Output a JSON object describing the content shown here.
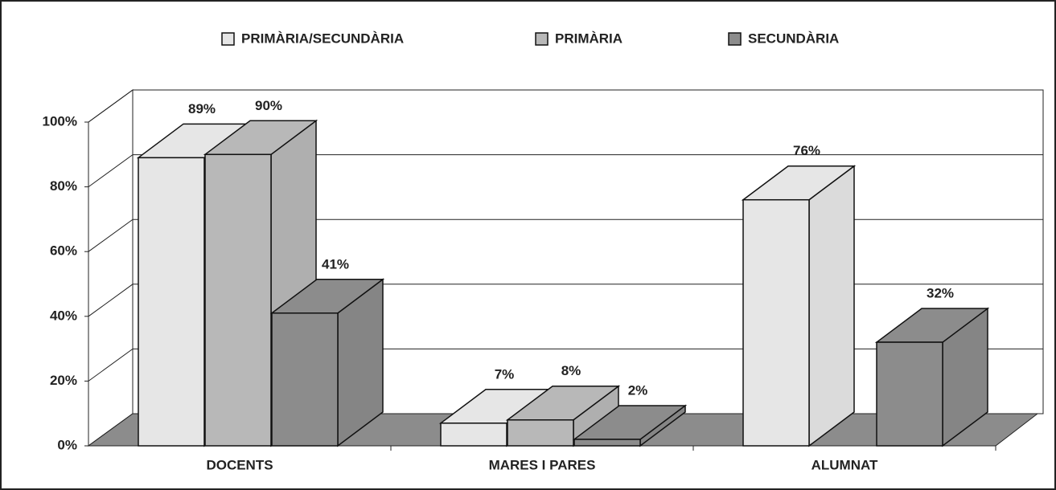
{
  "chart_data": {
    "type": "bar3d",
    "categories": [
      "DOCENTS",
      "MARES I PARES",
      "ALUMNAT"
    ],
    "series": [
      {
        "name": "PRIMÀRIA/SECUNDÀRIA",
        "color": "#e6e6e6",
        "values": [
          89,
          7,
          76
        ],
        "value_labels": [
          "89%",
          "7%",
          "76%"
        ]
      },
      {
        "name": "PRIMÀRIA",
        "color": "#b8b8b8",
        "values": [
          90,
          8,
          null
        ],
        "value_labels": [
          "90%",
          "8%",
          null
        ]
      },
      {
        "name": "SECUNDÀRIA",
        "color": "#8c8c8c",
        "values": [
          41,
          2,
          32
        ],
        "value_labels": [
          "41%",
          "2%",
          "32%"
        ]
      }
    ],
    "ylim": [
      0,
      100
    ],
    "yticks": [
      {
        "value": 0,
        "label": "0%"
      },
      {
        "value": 20,
        "label": "20%"
      },
      {
        "value": 40,
        "label": "40%"
      },
      {
        "value": 60,
        "label": "60%"
      },
      {
        "value": 80,
        "label": "80%"
      },
      {
        "value": 100,
        "label": "100%"
      }
    ],
    "grid": true,
    "legend": "top"
  }
}
